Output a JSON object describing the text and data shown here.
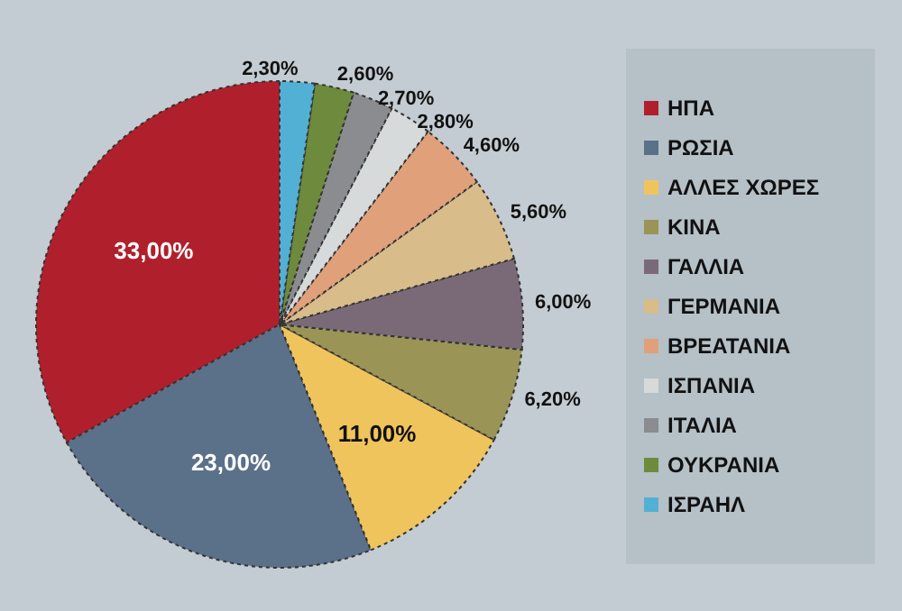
{
  "chart_data": {
    "type": "pie",
    "categories": [
      "ΗΠΑ",
      "ΡΩΣΙΑ",
      "ΑΛΛΕΣ ΧΩΡΕΣ",
      "ΚΙΝΑ",
      "ΓΑΛΛΙΑ",
      "ΓΕΡΜΑΝΙΑ",
      "ΒΡΕΑΤΑΝΙΑ",
      "ΙΣΠΑΝΙΑ",
      "ΙΤΑΛΙΑ",
      "ΟΥΚΡΑΝΙΑ",
      "ΙΣΡΑΗΛ"
    ],
    "values": [
      33,
      23,
      11,
      6.2,
      6,
      5.6,
      4.6,
      2.8,
      2.7,
      2.6,
      2.3
    ],
    "value_labels": [
      "33,00%",
      "23,00%",
      "11,00%",
      "6,20%",
      "6,00%",
      "5,60%",
      "4,60%",
      "2,80%",
      "2,70%",
      "2,60%",
      "2,30%"
    ],
    "colors": [
      "#b0202c",
      "#5b7089",
      "#f0c45c",
      "#9a9456",
      "#7a6a78",
      "#d8bc8a",
      "#e0a07a",
      "#d6dadb",
      "#8a8c90",
      "#6e8a3c",
      "#52b0d4"
    ],
    "legend": "right"
  }
}
